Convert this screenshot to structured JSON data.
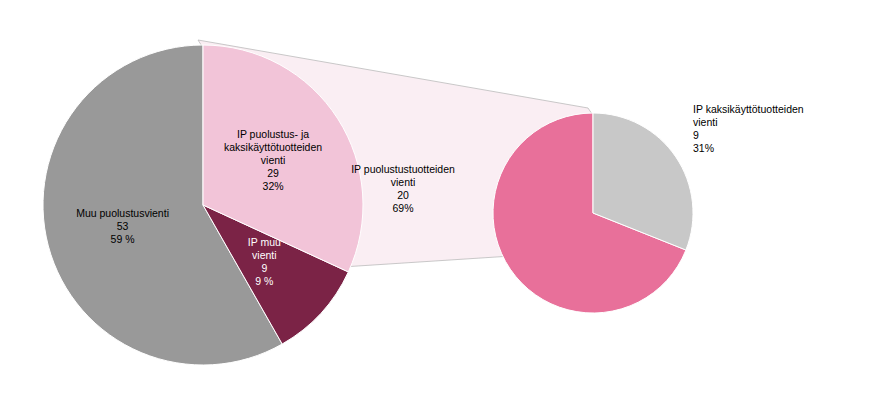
{
  "chart_data": [
    {
      "type": "pie",
      "categories": [
        "Muu puolustusvienti",
        "IP muu\nvienti",
        "IP puolustus- ja\nkaksikäyttötuotteiden\nvienti"
      ],
      "values": [
        53,
        9,
        29
      ],
      "shares": [
        {
          "value": 59,
          "label": "59 %"
        },
        {
          "value": 9,
          "label": "9 %"
        },
        {
          "value": 32,
          "label": "32%"
        }
      ],
      "colors": [
        "#999999",
        "#7B2346",
        "#F2C4D8"
      ],
      "data_labels": true
    },
    {
      "type": "pie",
      "categories": [
        "IP puolustustuotteiden\nvienti",
        "IP kaksikäyttötuotteiden\nvienti"
      ],
      "values": [
        20,
        9
      ],
      "shares": [
        {
          "value": 69,
          "label": "69%"
        },
        {
          "value": 31,
          "label": "31%"
        }
      ],
      "colors": [
        "#E8709A",
        "#C8C8C8"
      ],
      "data_labels": true
    }
  ]
}
